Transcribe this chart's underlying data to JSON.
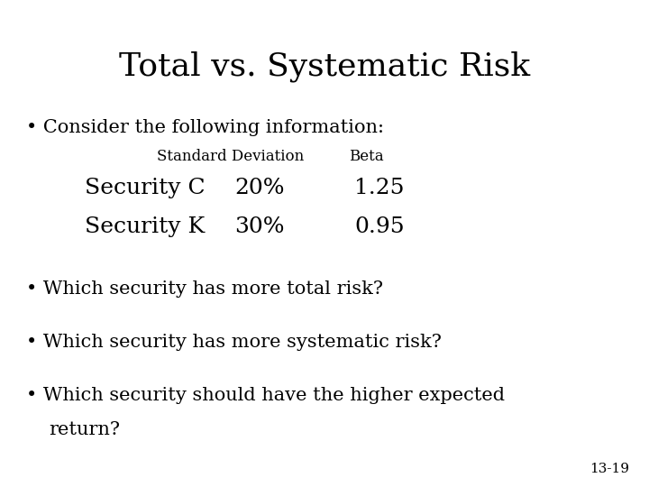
{
  "title": "Total vs. Systematic Risk",
  "title_fontsize": 26,
  "title_font": "DejaVu Serif",
  "background_color": "#ffffff",
  "text_color": "#000000",
  "bullet1": "Consider the following information:",
  "table_header_col1": "Standard Deviation",
  "table_header_col2": "Beta",
  "table_row1_label": "Security C",
  "table_row1_col1": "20%",
  "table_row1_col2": "1.25",
  "table_row2_label": "Security K",
  "table_row2_col1": "30%",
  "table_row2_col2": "0.95",
  "bullet2": "Which security has more total risk?",
  "bullet3": "Which security has more systematic risk?",
  "bullet4a": "Which security should have the higher expected",
  "bullet4b": "return?",
  "footnote": "13-19",
  "body_fontsize": 15,
  "table_header_fontsize": 12,
  "table_data_fontsize": 18,
  "footnote_fontsize": 11,
  "bullet_char": "•"
}
